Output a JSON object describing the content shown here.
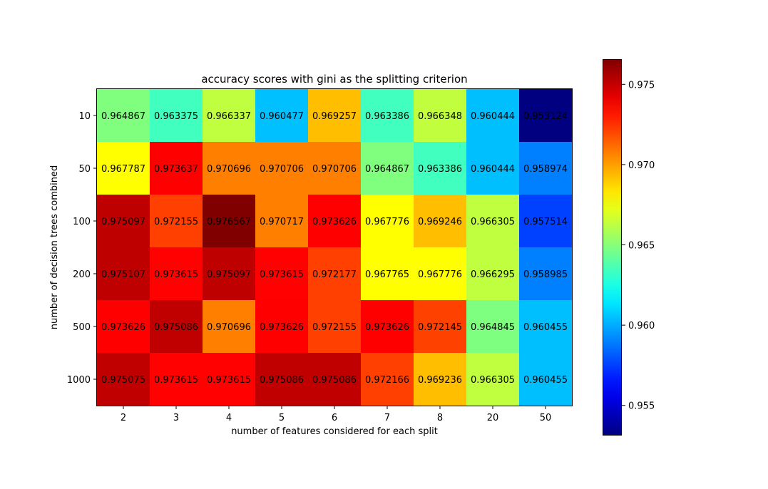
{
  "chart_data": {
    "type": "heatmap",
    "title": "accuracy scores with gini as the splitting criterion",
    "xlabel": "number of features considered for each split",
    "ylabel": "number of decision trees combined",
    "x_categories": [
      "2",
      "3",
      "4",
      "5",
      "6",
      "7",
      "8",
      "20",
      "50"
    ],
    "y_categories": [
      "10",
      "50",
      "100",
      "200",
      "500",
      "1000"
    ],
    "values": [
      [
        0.964867,
        0.963375,
        0.966337,
        0.960477,
        0.969257,
        0.963386,
        0.966348,
        0.960444,
        0.953124
      ],
      [
        0.967787,
        0.973637,
        0.970696,
        0.970706,
        0.970706,
        0.964867,
        0.963386,
        0.960444,
        0.958974
      ],
      [
        0.975097,
        0.972155,
        0.976567,
        0.970717,
        0.973626,
        0.967776,
        0.969246,
        0.966305,
        0.957514
      ],
      [
        0.975107,
        0.973615,
        0.975097,
        0.973615,
        0.972177,
        0.967765,
        0.967776,
        0.966295,
        0.958985
      ],
      [
        0.973626,
        0.975086,
        0.970696,
        0.973626,
        0.972155,
        0.973626,
        0.972145,
        0.964845,
        0.960455
      ],
      [
        0.975075,
        0.973615,
        0.973615,
        0.975086,
        0.975086,
        0.972166,
        0.969236,
        0.966305,
        0.960455
      ]
    ],
    "labels": [
      [
        "0.964867",
        "0.963375",
        "0.966337",
        "0.960477",
        "0.969257",
        "0.963386",
        "0.966348",
        "0.960444",
        "0.953124"
      ],
      [
        "0.967787",
        "0.973637",
        "0.970696",
        "0.970706",
        "0.970706",
        "0.964867",
        "0.963386",
        "0.960444",
        "0.958974"
      ],
      [
        "0.975097",
        "0.972155",
        "0.976567",
        "0.970717",
        "0.973626",
        "0.967776",
        "0.969246",
        "0.966305",
        "0.957514"
      ],
      [
        "0.975107",
        "0.973615",
        "0.975097",
        "0.973615",
        "0.972177",
        "0.967765",
        "0.967776",
        "0.966295",
        "0.958985"
      ],
      [
        "0.973626",
        "0.975086",
        "0.970696",
        "0.973626",
        "0.972155",
        "0.973626",
        "0.972145",
        "0.964845",
        "0.960455"
      ],
      [
        "0.975075",
        "0.973615",
        "0.973615",
        "0.975086",
        "0.975086",
        "0.972166",
        "0.969236",
        "0.966305",
        "0.960455"
      ]
    ],
    "colormap": "jet",
    "vmin": 0.953124,
    "vmax": 0.976567,
    "colorbar_ticks": [
      0.955,
      0.96,
      0.965,
      0.97,
      0.975
    ],
    "colorbar_tick_labels": [
      "0.955",
      "0.960",
      "0.965",
      "0.970",
      "0.975"
    ],
    "legend": "colorbar-right"
  }
}
